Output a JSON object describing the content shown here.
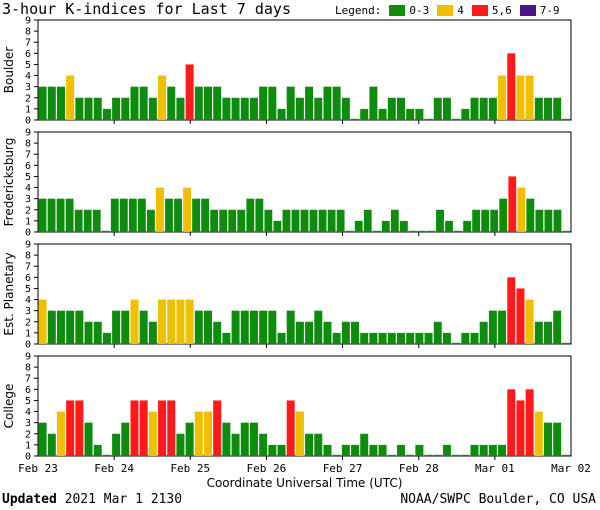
{
  "title": "3-hour K-indices for Last 7 days",
  "legend": {
    "label": "Legend:",
    "items": [
      {
        "label": "0-3",
        "color": "#0e8c0e"
      },
      {
        "label": "4",
        "color": "#f0c000"
      },
      {
        "label": "5,6",
        "color": "#ff1a1a"
      },
      {
        "label": "7-9",
        "color": "#4b148c"
      }
    ]
  },
  "footer": {
    "updated_label": "Updated",
    "updated_value": "2021 Mar  1 2130",
    "credit": "NOAA/SWPC Boulder, CO USA"
  },
  "chart_data": [
    {
      "type": "bar",
      "station": "Boulder",
      "ylim": [
        0,
        9
      ],
      "xlabel": "Coordinate Universal Time (UTC)",
      "x_ticks": [
        "Feb 23",
        "Feb 24",
        "Feb 25",
        "Feb 26",
        "Feb 27",
        "Feb 28",
        "Mar 01",
        "Mar 02"
      ],
      "values": [
        3,
        3,
        3,
        4,
        2,
        2,
        2,
        1,
        2,
        2,
        3,
        3,
        2,
        4,
        3,
        2,
        5,
        3,
        3,
        3,
        2,
        2,
        2,
        2,
        3,
        3,
        1,
        3,
        2,
        3,
        2,
        3,
        3,
        2,
        0,
        1,
        3,
        1,
        2,
        2,
        1,
        1,
        0,
        2,
        2,
        0,
        1,
        2,
        2,
        2,
        4,
        6,
        4,
        4,
        2,
        2,
        2,
        0
      ]
    },
    {
      "type": "bar",
      "station": "Fredericksburg",
      "ylim": [
        0,
        9
      ],
      "xlabel": "Coordinate Universal Time (UTC)",
      "x_ticks": [
        "Feb 23",
        "Feb 24",
        "Feb 25",
        "Feb 26",
        "Feb 27",
        "Feb 28",
        "Mar 01",
        "Mar 02"
      ],
      "values": [
        3,
        3,
        3,
        3,
        2,
        2,
        2,
        0,
        3,
        3,
        3,
        3,
        2,
        4,
        3,
        3,
        4,
        3,
        3,
        2,
        2,
        2,
        2,
        3,
        3,
        2,
        1,
        2,
        2,
        2,
        2,
        2,
        2,
        2,
        0,
        1,
        2,
        0,
        1,
        2,
        1,
        0,
        0,
        0,
        2,
        1,
        0,
        1,
        2,
        2,
        2,
        3,
        5,
        4,
        3,
        2,
        2,
        2,
        0
      ]
    },
    {
      "type": "bar",
      "station": "Est. Planetary",
      "ylim": [
        0,
        9
      ],
      "xlabel": "Coordinate Universal Time (UTC)",
      "x_ticks": [
        "Feb 23",
        "Feb 24",
        "Feb 25",
        "Feb 26",
        "Feb 27",
        "Feb 28",
        "Mar 01",
        "Mar 02"
      ],
      "values": [
        4,
        3,
        3,
        3,
        3,
        2,
        2,
        1,
        3,
        3,
        4,
        3,
        2,
        4,
        4,
        4,
        4,
        3,
        3,
        2,
        1,
        3,
        3,
        3,
        3,
        3,
        1,
        3,
        2,
        2,
        3,
        2,
        1,
        2,
        2,
        1,
        1,
        1,
        1,
        1,
        1,
        1,
        1,
        2,
        1,
        0,
        1,
        1,
        2,
        3,
        3,
        6,
        5,
        4,
        2,
        2,
        3,
        0
      ]
    },
    {
      "type": "bar",
      "station": "College",
      "ylim": [
        0,
        9
      ],
      "xlabel": "Coordinate Universal Time (UTC)",
      "x_ticks": [
        "Feb 23",
        "Feb 24",
        "Feb 25",
        "Feb 26",
        "Feb 27",
        "Feb 28",
        "Mar 01",
        "Mar 02"
      ],
      "values": [
        3,
        2,
        4,
        5,
        5,
        3,
        1,
        0,
        2,
        3,
        5,
        5,
        4,
        5,
        5,
        2,
        3,
        4,
        4,
        5,
        3,
        2,
        3,
        3,
        2,
        1,
        1,
        5,
        4,
        2,
        2,
        1,
        0,
        1,
        1,
        2,
        1,
        1,
        0,
        1,
        0,
        1,
        0,
        0,
        1,
        0,
        0,
        1,
        1,
        1,
        1,
        6,
        5,
        6,
        4,
        3,
        3,
        0
      ]
    }
  ]
}
